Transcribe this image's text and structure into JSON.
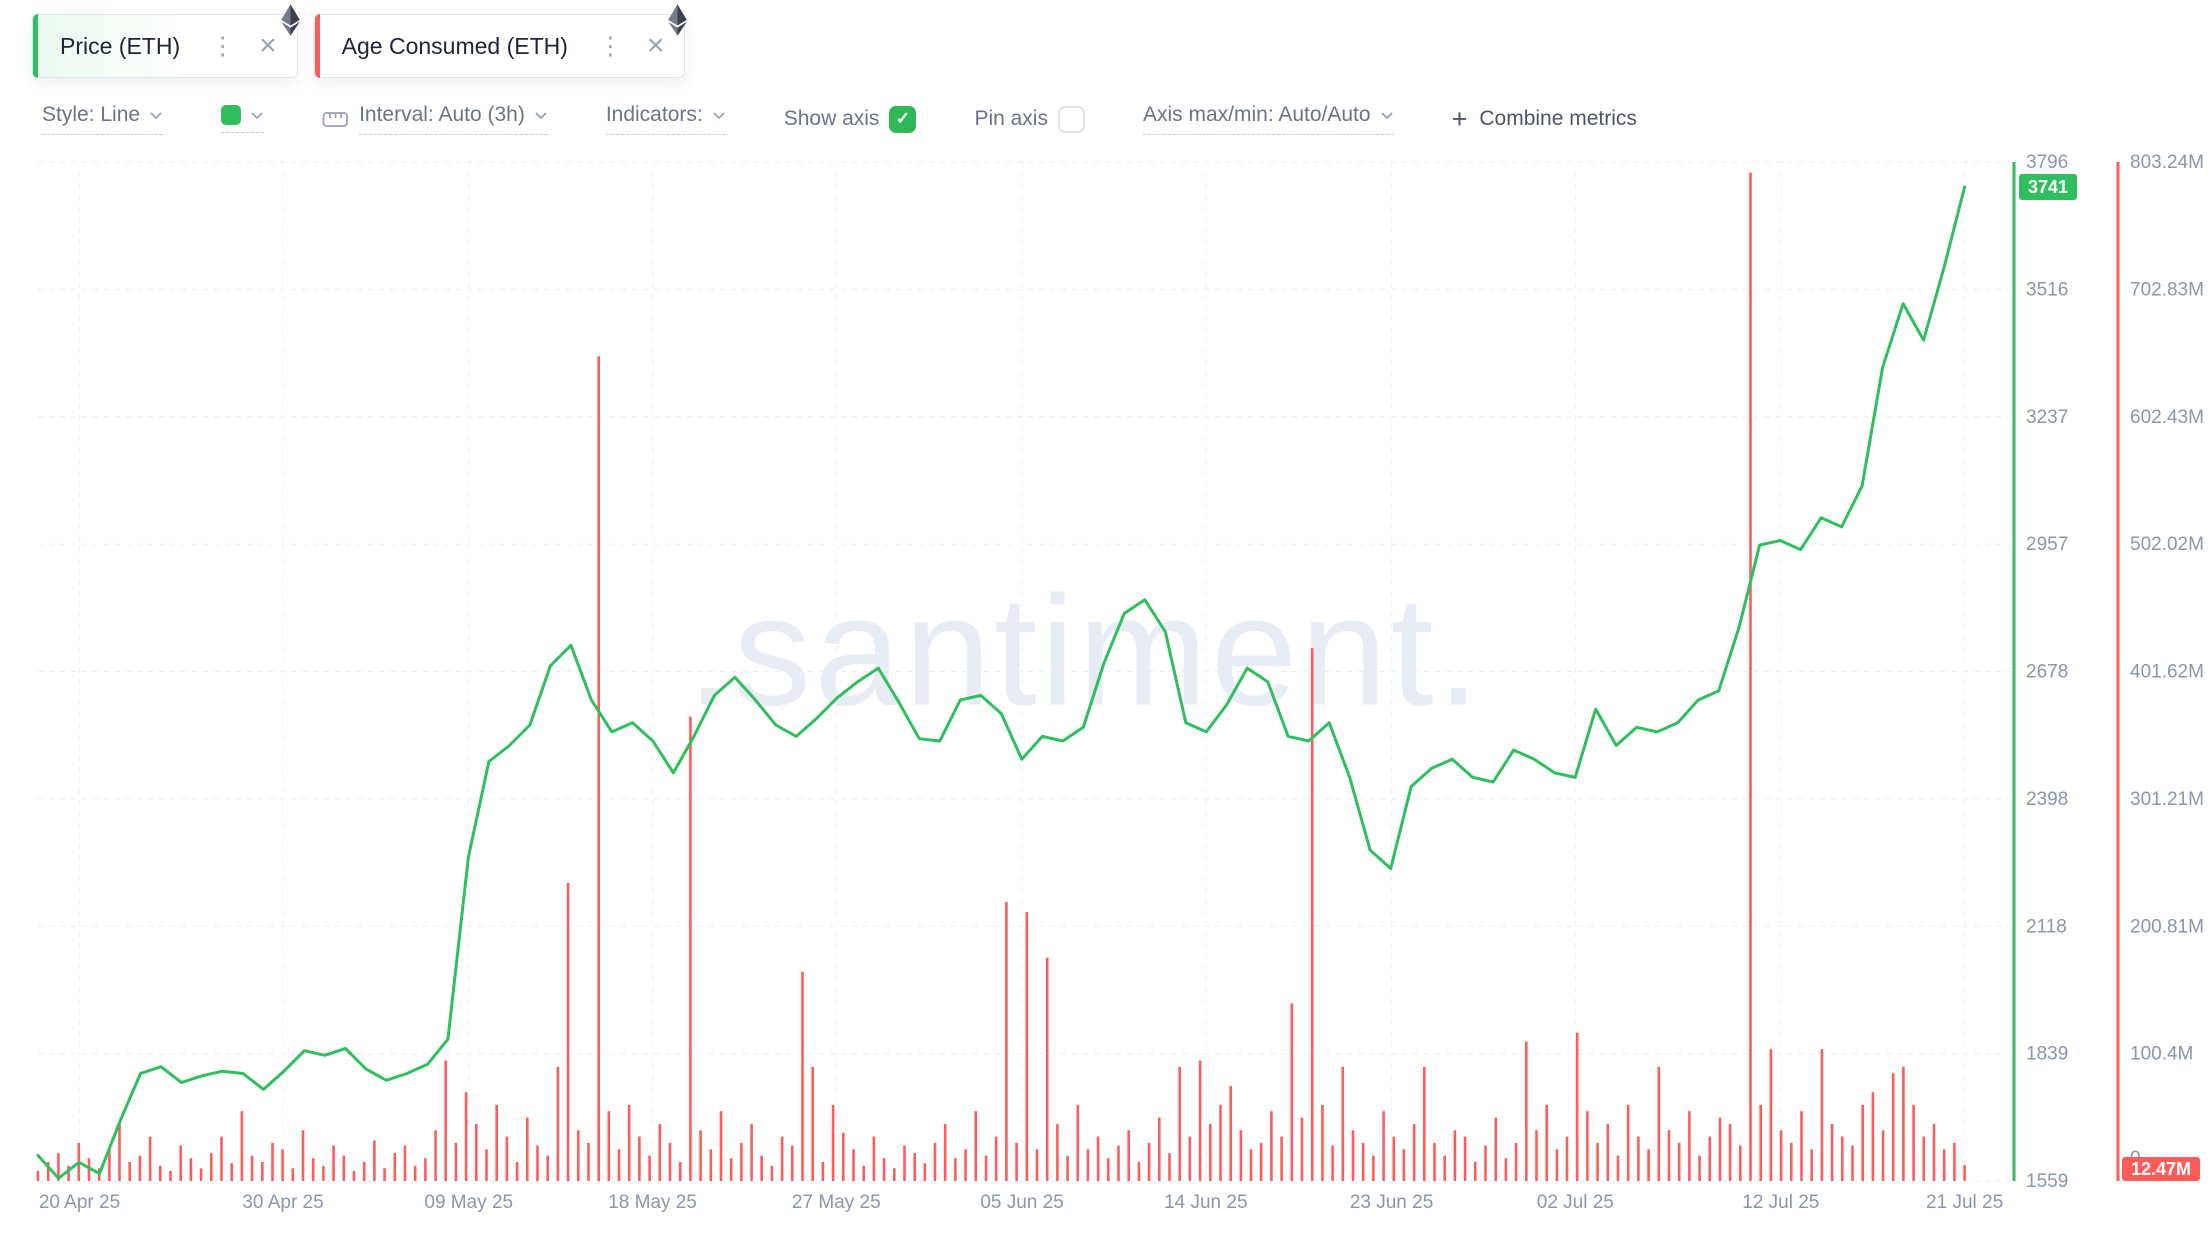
{
  "tabs": [
    {
      "label": "Price (ETH)",
      "accent_color": "#2fbf5e"
    },
    {
      "label": "Age Consumed (ETH)",
      "accent_color": "#ff5b5b"
    }
  ],
  "icons": {
    "close": "×",
    "kebab": "⋮",
    "plus": "+",
    "check": "✓"
  },
  "toolbar": {
    "style": "Style: Line",
    "line_color": "#2fbf5e",
    "interval": "Interval: Auto (3h)",
    "indicators": "Indicators:",
    "show_axis": "Show axis",
    "show_axis_checked": true,
    "pin_axis": "Pin axis",
    "pin_axis_checked": false,
    "axis_maxmin": "Axis max/min: Auto/Auto",
    "combine_metrics": "Combine metrics"
  },
  "watermark": ".santiment.",
  "chart_data": {
    "type": "line+bar",
    "x_range": [
      "18 Apr 25",
      "21 Jul 25"
    ],
    "x_span": 0.975,
    "x_ticks": [
      {
        "label": "20 Apr 25",
        "pos": 0.021
      },
      {
        "label": "30 Apr 25",
        "pos": 0.124
      },
      {
        "label": "09 May 25",
        "pos": 0.218
      },
      {
        "label": "18 May 25",
        "pos": 0.311
      },
      {
        "label": "27 May 25",
        "pos": 0.404
      },
      {
        "label": "05 Jun 25",
        "pos": 0.498
      },
      {
        "label": "14 Jun 25",
        "pos": 0.591
      },
      {
        "label": "23 Jun 25",
        "pos": 0.685
      },
      {
        "label": "02 Jul 25",
        "pos": 0.778
      },
      {
        "label": "12 Jul 25",
        "pos": 0.882
      },
      {
        "label": "21 Jul 25",
        "pos": 0.975
      }
    ],
    "price_axis": {
      "name": "Price (ETH)",
      "color": "#2fbf5e",
      "min": 1559,
      "max": 3796,
      "ticks": [
        3796,
        3516,
        3237,
        2957,
        2678,
        2398,
        2118,
        1839,
        1559
      ],
      "current": 3741
    },
    "volume_axis": {
      "name": "Age Consumed (ETH)",
      "color": "#ff5b5b",
      "min": 0,
      "max_m": 803.24,
      "tick_labels": [
        "803.24M",
        "702.83M",
        "602.43M",
        "502.02M",
        "401.62M",
        "301.21M",
        "200.81M",
        "100.4M",
        "0"
      ],
      "current_label": "12.47M"
    },
    "series": [
      {
        "name": "Price (ETH)",
        "type": "line",
        "color": "#2fbf5e",
        "axis": "price",
        "interval": "daily",
        "values": [
          1615,
          1565,
          1600,
          1575,
          1690,
          1795,
          1810,
          1775,
          1790,
          1800,
          1795,
          1760,
          1800,
          1845,
          1835,
          1850,
          1805,
          1780,
          1795,
          1815,
          1870,
          2270,
          2480,
          2515,
          2560,
          2690,
          2735,
          2615,
          2545,
          2565,
          2525,
          2455,
          2535,
          2625,
          2665,
          2615,
          2560,
          2535,
          2575,
          2620,
          2655,
          2685,
          2610,
          2530,
          2525,
          2615,
          2625,
          2585,
          2485,
          2535,
          2525,
          2555,
          2695,
          2805,
          2835,
          2765,
          2565,
          2545,
          2605,
          2685,
          2655,
          2535,
          2525,
          2565,
          2445,
          2285,
          2245,
          2425,
          2465,
          2485,
          2445,
          2435,
          2505,
          2485,
          2455,
          2445,
          2595,
          2515,
          2555,
          2545,
          2565,
          2615,
          2635,
          2775,
          2955,
          2965,
          2945,
          3015,
          2995,
          3085,
          3345,
          3485,
          3405,
          3565,
          3741
        ]
      },
      {
        "name": "Age Consumed (ETH)",
        "type": "bar",
        "color": "#ff5c5c",
        "axis": "volume",
        "unit": "M",
        "interval": "12h",
        "values_m": [
          8,
          15,
          22,
          12,
          30,
          18,
          10,
          25,
          45,
          15,
          20,
          35,
          12,
          8,
          28,
          18,
          10,
          22,
          35,
          14,
          55,
          20,
          15,
          30,
          25,
          10,
          40,
          18,
          12,
          28,
          20,
          8,
          15,
          32,
          10,
          22,
          28,
          12,
          18,
          40,
          95,
          30,
          70,
          45,
          25,
          60,
          35,
          15,
          50,
          28,
          20,
          90,
          235,
          40,
          30,
          650,
          55,
          25,
          60,
          35,
          20,
          45,
          30,
          15,
          366,
          40,
          25,
          55,
          18,
          30,
          45,
          20,
          12,
          35,
          28,
          165,
          90,
          15,
          60,
          38,
          25,
          12,
          35,
          18,
          10,
          28,
          22,
          14,
          30,
          45,
          18,
          25,
          55,
          20,
          35,
          220,
          30,
          212,
          25,
          176,
          45,
          20,
          60,
          25,
          35,
          18,
          28,
          40,
          15,
          30,
          50,
          22,
          90,
          35,
          95,
          45,
          60,
          75,
          40,
          25,
          30,
          55,
          35,
          140,
          50,
          420,
          60,
          28,
          90,
          40,
          30,
          20,
          55,
          35,
          25,
          45,
          90,
          30,
          20,
          40,
          35,
          15,
          28,
          50,
          18,
          30,
          110,
          40,
          60,
          25,
          35,
          117,
          55,
          30,
          45,
          20,
          60,
          35,
          25,
          90,
          40,
          30,
          55,
          20,
          35,
          50,
          45,
          28,
          795,
          60,
          104,
          40,
          30,
          55,
          25,
          104,
          45,
          35,
          28,
          60,
          70,
          40,
          85,
          90,
          60,
          35,
          45,
          25,
          30,
          12.47
        ]
      }
    ],
    "legend_position": "tabs-top-left",
    "grid": true
  }
}
